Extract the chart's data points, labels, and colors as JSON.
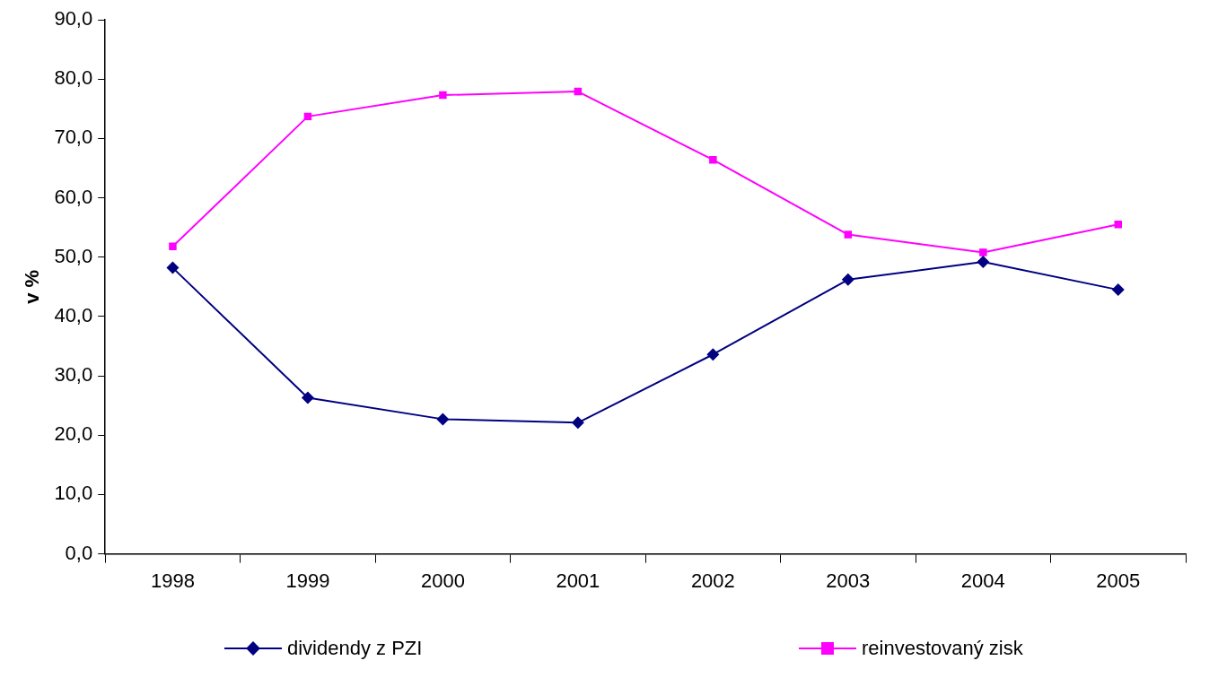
{
  "chart_data": {
    "type": "line",
    "ylabel": "v %",
    "categories": [
      "1998",
      "1999",
      "2000",
      "2001",
      "2002",
      "2003",
      "2004",
      "2005"
    ],
    "series": [
      {
        "name": "dividendy z PZI",
        "color": "#000080",
        "marker": "diamond",
        "values": [
          48.2,
          26.3,
          22.7,
          22.1,
          33.6,
          46.2,
          49.2,
          44.5
        ]
      },
      {
        "name": "reinvestovaný zisk",
        "color": "#ff00ff",
        "marker": "square",
        "values": [
          51.8,
          73.7,
          77.3,
          77.9,
          66.4,
          53.8,
          50.8,
          55.5
        ]
      }
    ],
    "ylim": [
      0,
      90
    ],
    "yticks": [
      {
        "value": 0,
        "label": "0,0"
      },
      {
        "value": 10,
        "label": "10,0"
      },
      {
        "value": 20,
        "label": "20,0"
      },
      {
        "value": 30,
        "label": "30,0"
      },
      {
        "value": 40,
        "label": "40,0"
      },
      {
        "value": 50,
        "label": "50,0"
      },
      {
        "value": 60,
        "label": "60,0"
      },
      {
        "value": 70,
        "label": "70,0"
      },
      {
        "value": 80,
        "label": "80,0"
      },
      {
        "value": 90,
        "label": "90,0"
      }
    ],
    "grid": false,
    "legend": "bottom",
    "line_style": "solid"
  }
}
